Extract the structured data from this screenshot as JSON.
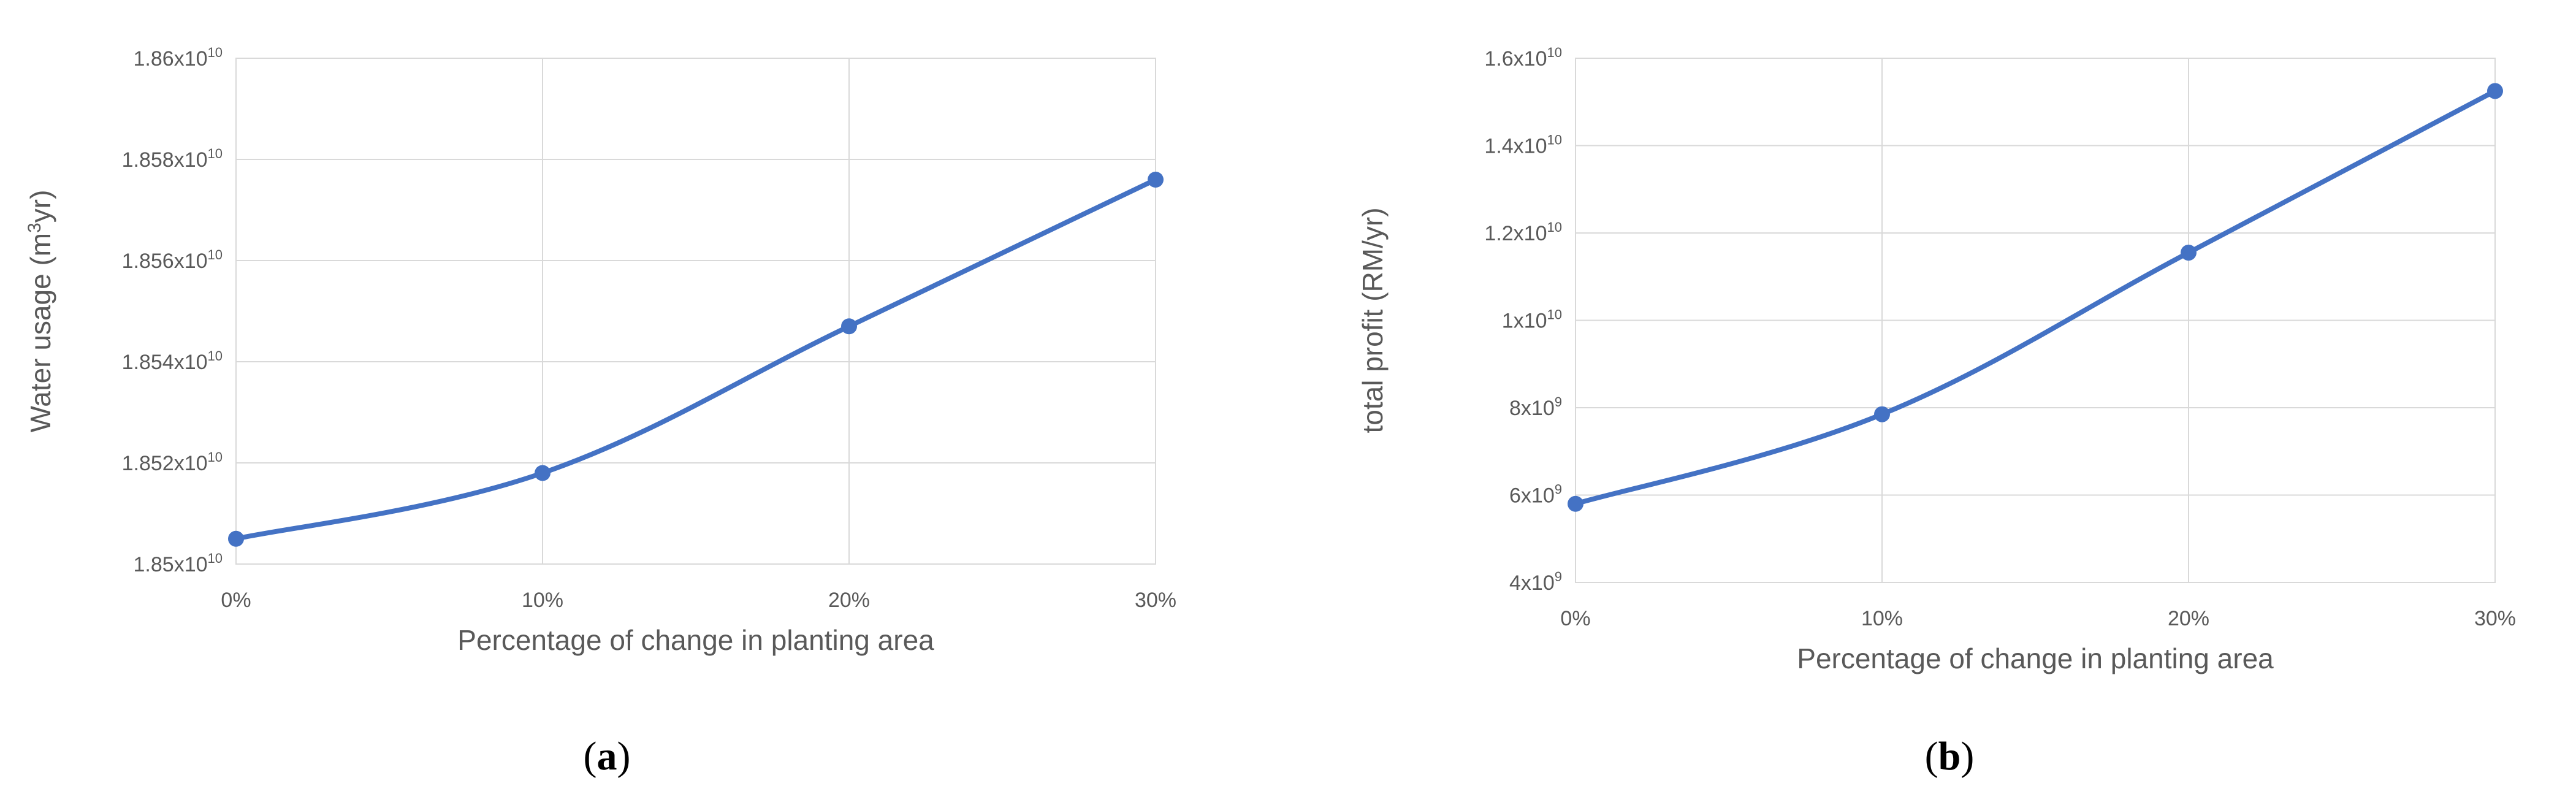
{
  "chart_data": [
    {
      "type": "line",
      "panel_label": "a",
      "x": [
        "0%",
        "10%",
        "20%",
        "30%"
      ],
      "series": [
        {
          "values": [
            18505000000,
            18518000000,
            18547000000,
            18576000000
          ]
        }
      ],
      "xlabel": "Percentage of change in planting area",
      "ylabel_prefix": "Water usage (m",
      "ylabel_sup": "3",
      "ylabel_suffix": "yr)",
      "ylim": [
        18500000000,
        18600000000
      ],
      "y_ticks": [
        {
          "mantissa": "1.85",
          "exp": "10"
        },
        {
          "mantissa": "1.852",
          "exp": "10"
        },
        {
          "mantissa": "1.854",
          "exp": "10"
        },
        {
          "mantissa": "1.856",
          "exp": "10"
        },
        {
          "mantissa": "1.858",
          "exp": "10"
        },
        {
          "mantissa": "1.86",
          "exp": "10"
        }
      ],
      "y_tick_values": [
        18500000000,
        18520000000,
        18540000000,
        18560000000,
        18580000000,
        18600000000
      ],
      "grid": true,
      "line_color": "#4472C4",
      "grid_color": "#D9D9D9"
    },
    {
      "type": "line",
      "panel_label": "b",
      "x": [
        "0%",
        "10%",
        "20%",
        "30%"
      ],
      "series": [
        {
          "values": [
            5800000000,
            7850000000,
            11550000000,
            15250000000
          ]
        }
      ],
      "xlabel": "Percentage of change in planting area",
      "ylabel_prefix": "total profit (RM/yr)",
      "ylabel_sup": "",
      "ylabel_suffix": "",
      "ylim": [
        4000000000,
        16000000000
      ],
      "y_ticks": [
        {
          "mantissa": "4x10",
          "exp": "9"
        },
        {
          "mantissa": "6x10",
          "exp": "9"
        },
        {
          "mantissa": "8x10",
          "exp": "9"
        },
        {
          "mantissa": "1x10",
          "exp": "10"
        },
        {
          "mantissa": "1.2x10",
          "exp": "10"
        },
        {
          "mantissa": "1.4x10",
          "exp": "10"
        },
        {
          "mantissa": "1.6x10",
          "exp": "10"
        }
      ],
      "y_tick_values": [
        4000000000,
        6000000000,
        8000000000,
        10000000000,
        12000000000,
        14000000000,
        16000000000
      ],
      "grid": true,
      "line_color": "#4472C4",
      "grid_color": "#D9D9D9"
    }
  ]
}
